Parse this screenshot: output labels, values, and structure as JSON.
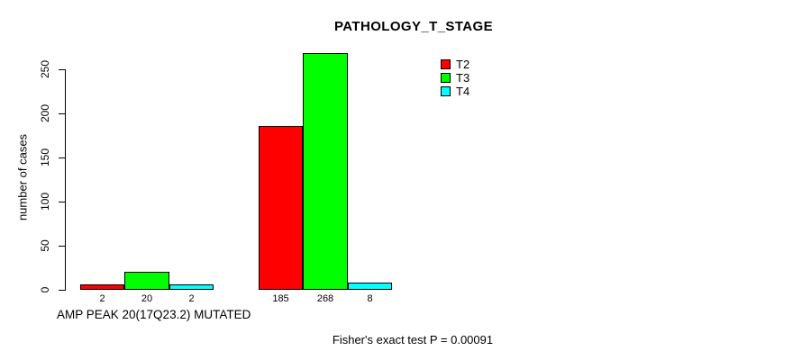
{
  "title": "PATHOLOGY_T_STAGE",
  "footer": "Fisher's exact test P = 0.00091",
  "legend": [
    {
      "label": "T2",
      "color": "#FF0000"
    },
    {
      "label": "T3",
      "color": "#00FF00"
    },
    {
      "label": "T4",
      "color": "#00FFFF"
    }
  ],
  "chart_data": {
    "type": "bar",
    "title": "PATHOLOGY_T_STAGE",
    "xlabel": "AMP PEAK 20(17Q23.2) MUTATED",
    "ylabel": "number of cases",
    "ylim": [
      0,
      250
    ],
    "yticks": [
      0,
      50,
      100,
      150,
      200,
      250
    ],
    "grid": false,
    "legend_position": "top-right-inside",
    "group_labels": [
      "AMP PEAK 20(17Q23.2) MUTATED",
      ""
    ],
    "series": [
      {
        "name": "T2",
        "color": "#FF0000",
        "values": [
          2,
          185
        ]
      },
      {
        "name": "T3",
        "color": "#00FF00",
        "values": [
          20,
          268
        ]
      },
      {
        "name": "T4",
        "color": "#00FFFF",
        "values": [
          2,
          8
        ]
      }
    ],
    "bar_value_labels": [
      [
        "2",
        "20",
        "2"
      ],
      [
        "185",
        "268",
        "8"
      ]
    ],
    "annotation": "Fisher's exact test P = 0.00091"
  }
}
